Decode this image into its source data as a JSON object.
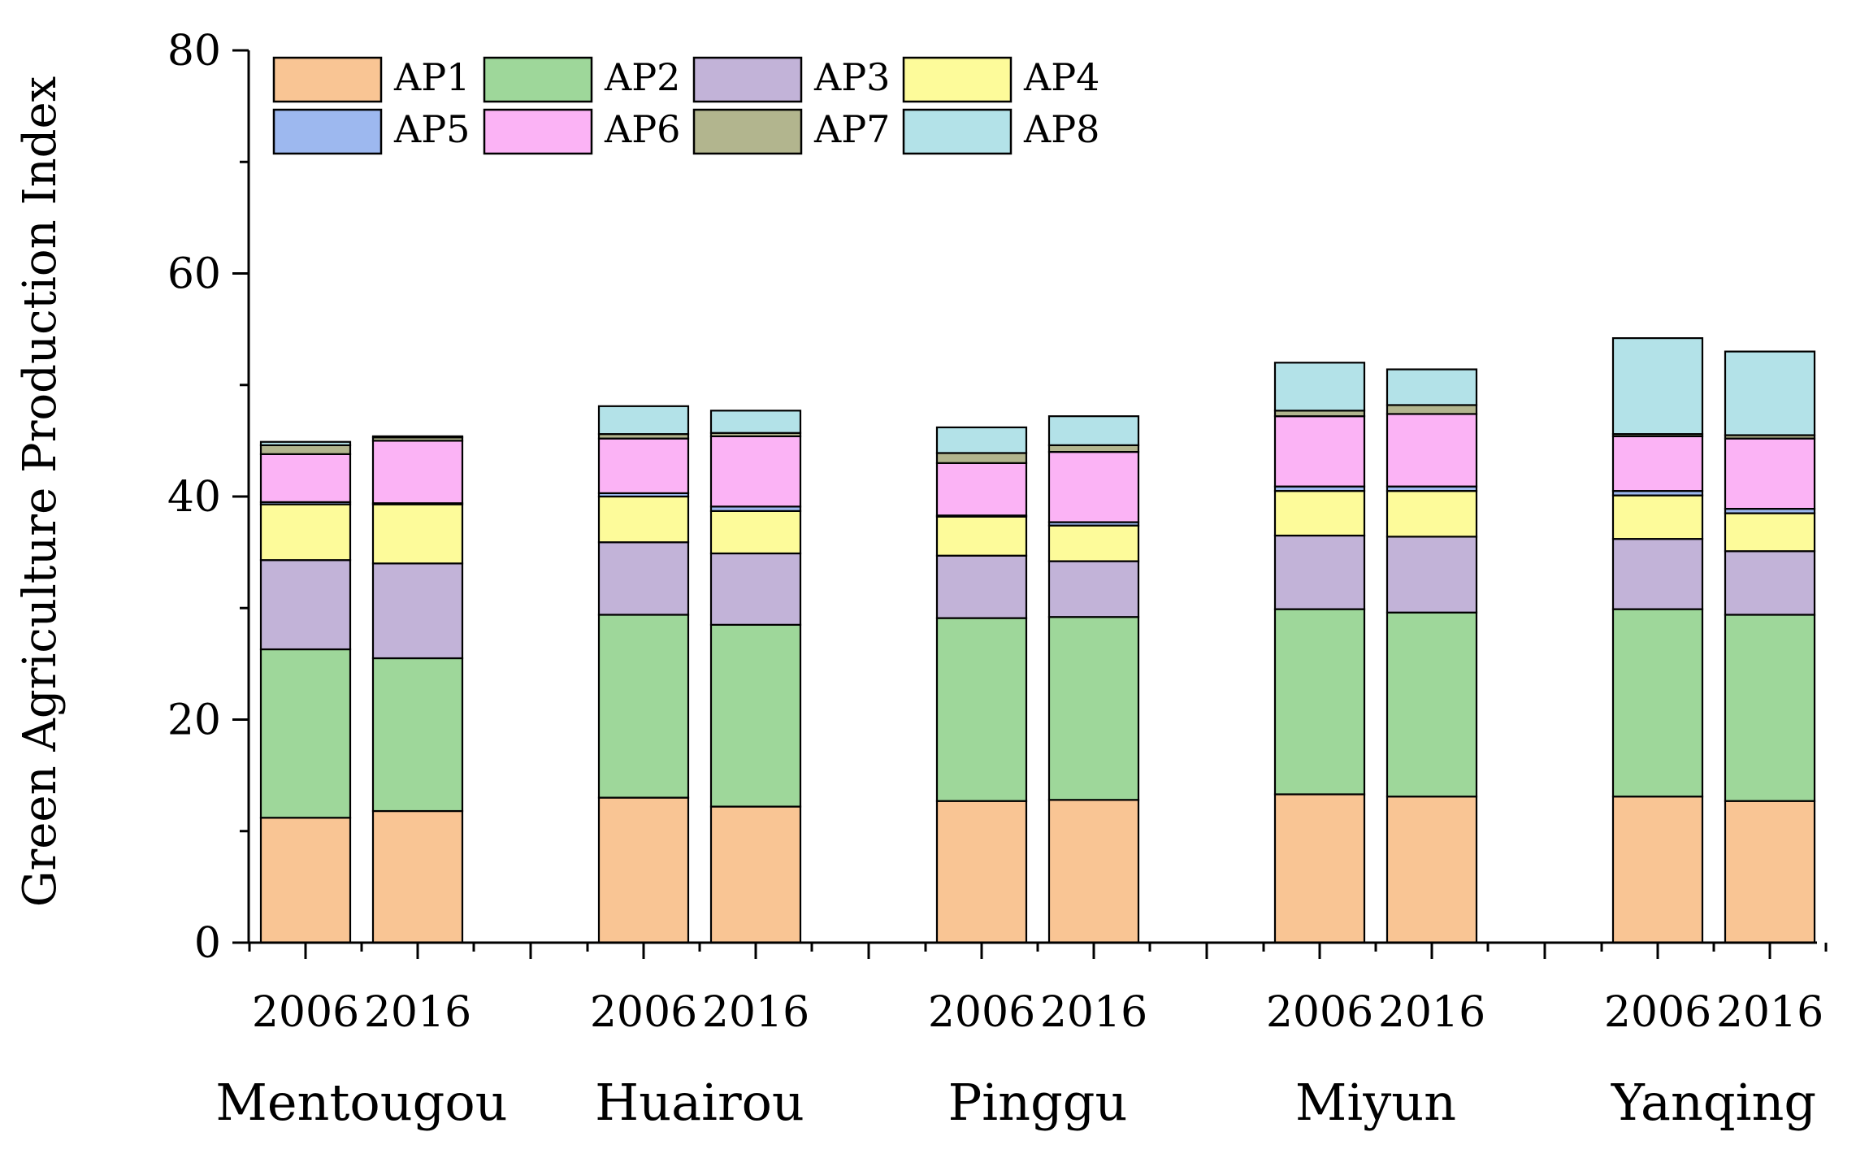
{
  "chart_data": {
    "type": "bar",
    "stacked": true,
    "title": "",
    "xlabel": "",
    "ylabel": "Green Agriculture Production Index",
    "ylim": [
      0,
      80
    ],
    "yticks": [
      0,
      20,
      40,
      60,
      80
    ],
    "legend_position": "top-left",
    "groups": [
      "Mentougou",
      "Huairou",
      "Pinggu",
      "Miyun",
      "Yanqing"
    ],
    "years": [
      "2006",
      "2016"
    ],
    "categories": [
      "Mentougou 2006",
      "Mentougou 2016",
      "Huairou 2006",
      "Huairou 2016",
      "Pinggu 2006",
      "Pinggu 2016",
      "Miyun 2006",
      "Miyun 2016",
      "Yanqing 2006",
      "Yanqing 2016"
    ],
    "series": [
      {
        "name": "AP1",
        "color": "#f9c594",
        "values": [
          11.2,
          11.8,
          13.0,
          12.2,
          12.7,
          12.8,
          13.3,
          13.1,
          13.1,
          12.7
        ]
      },
      {
        "name": "AP2",
        "color": "#9ed79a",
        "values": [
          15.1,
          13.7,
          16.4,
          16.3,
          16.4,
          16.4,
          16.6,
          16.5,
          16.8,
          16.7
        ]
      },
      {
        "name": "AP3",
        "color": "#c2b3d8",
        "values": [
          8.0,
          8.5,
          6.5,
          6.4,
          5.6,
          5.0,
          6.6,
          6.8,
          6.3,
          5.7
        ]
      },
      {
        "name": "AP4",
        "color": "#fdfb9a",
        "values": [
          5.0,
          5.3,
          4.1,
          3.8,
          3.5,
          3.2,
          4.0,
          4.1,
          3.9,
          3.4
        ]
      },
      {
        "name": "AP5",
        "color": "#9db8ef",
        "values": [
          0.2,
          0.1,
          0.3,
          0.4,
          0.1,
          0.3,
          0.4,
          0.4,
          0.4,
          0.4
        ]
      },
      {
        "name": "AP6",
        "color": "#fbb3f5",
        "values": [
          4.3,
          5.6,
          4.9,
          6.3,
          4.7,
          6.3,
          6.3,
          6.5,
          4.9,
          6.3
        ]
      },
      {
        "name": "AP7",
        "color": "#b2b58e",
        "values": [
          0.8,
          0.3,
          0.4,
          0.3,
          0.9,
          0.6,
          0.5,
          0.8,
          0.2,
          0.3
        ]
      },
      {
        "name": "AP8",
        "color": "#b3e2e8",
        "values": [
          0.3,
          0.1,
          2.5,
          2.0,
          2.3,
          2.6,
          4.3,
          3.2,
          8.6,
          7.5
        ]
      }
    ]
  }
}
